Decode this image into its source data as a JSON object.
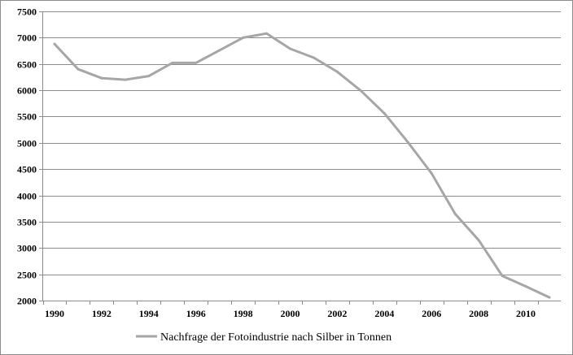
{
  "chart_data": {
    "type": "line",
    "title": "",
    "xlabel": "",
    "ylabel": "",
    "x": [
      1990,
      1991,
      1992,
      1993,
      1994,
      1995,
      1996,
      1997,
      1998,
      1999,
      2000,
      2001,
      2002,
      2003,
      2004,
      2005,
      2006,
      2007,
      2008,
      2009,
      2010,
      2011
    ],
    "series": [
      {
        "name": "Nachfrage der Fotoindustrie nach Silber in Tonnen",
        "color": "#a6a6a6",
        "values": [
          6880,
          6400,
          6230,
          6200,
          6270,
          6520,
          6520,
          6760,
          7000,
          7080,
          6790,
          6620,
          6350,
          5990,
          5560,
          5010,
          4420,
          3650,
          3150,
          2470,
          2270,
          2060
        ]
      }
    ],
    "xlim": [
      1990,
      2011
    ],
    "ylim": [
      2000,
      7500
    ],
    "y_ticks": [
      "2000",
      "2500",
      "3000",
      "3500",
      "4000",
      "4500",
      "5000",
      "5500",
      "6000",
      "6500",
      "7000",
      "7500"
    ],
    "x_ticks": [
      "1990",
      "1992",
      "1994",
      "1996",
      "1998",
      "2000",
      "2002",
      "2004",
      "2006",
      "2008",
      "2010"
    ],
    "grid": "horizontal",
    "legend_position": "bottom"
  }
}
